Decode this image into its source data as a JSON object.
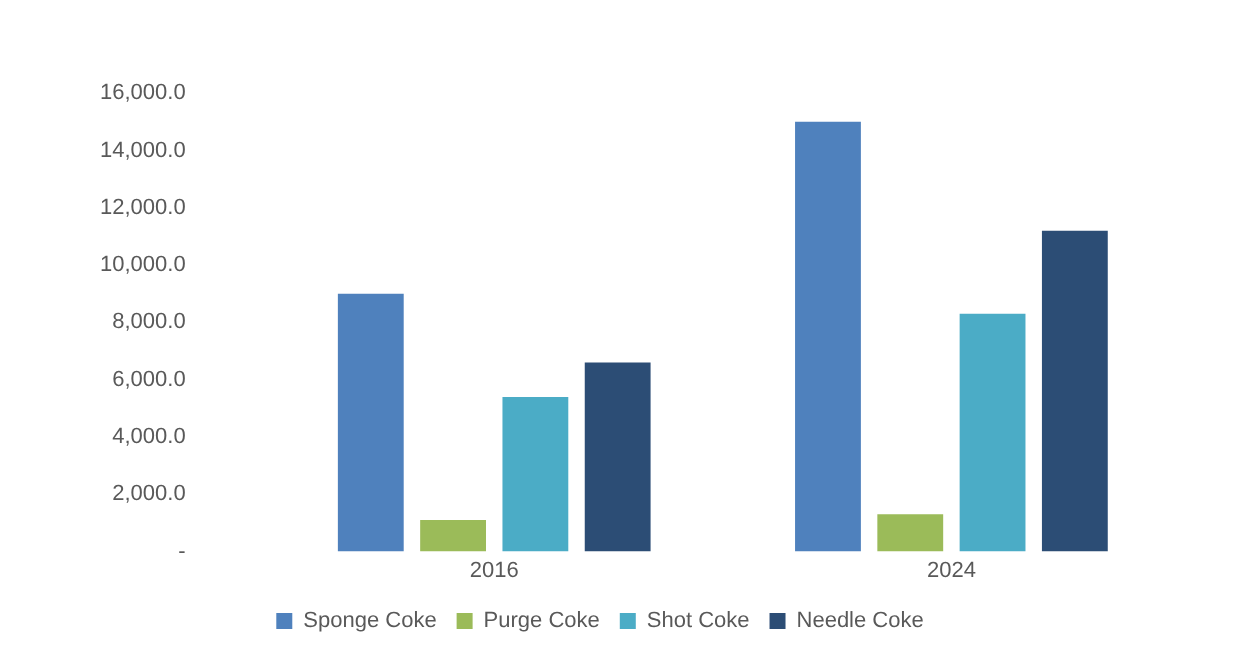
{
  "chart_data": {
    "type": "bar",
    "categories": [
      "2016",
      "2024"
    ],
    "series": [
      {
        "name": "Sponge Coke",
        "color": "#4f81bd",
        "values": [
          9000,
          15000
        ]
      },
      {
        "name": "Purge Coke",
        "color": "#9bbb59",
        "values": [
          1100,
          1300
        ]
      },
      {
        "name": "Shot Coke",
        "color": "#4bacc6",
        "values": [
          5400,
          8300
        ]
      },
      {
        "name": "Needle Coke",
        "color": "#2c4d75",
        "values": [
          6600,
          11200
        ]
      }
    ],
    "ylim": [
      0,
      16000
    ],
    "yticks": [
      {
        "value": 0,
        "label": "-"
      },
      {
        "value": 2000,
        "label": "2,000.0"
      },
      {
        "value": 4000,
        "label": "4,000.0"
      },
      {
        "value": 6000,
        "label": "6,000.0"
      },
      {
        "value": 8000,
        "label": "8,000.0"
      },
      {
        "value": 10000,
        "label": "10,000.0"
      },
      {
        "value": 12000,
        "label": "12,000.0"
      },
      {
        "value": 14000,
        "label": "14,000.0"
      },
      {
        "value": 16000,
        "label": "16,000.0"
      }
    ],
    "grid": false,
    "legend": "bottom"
  }
}
